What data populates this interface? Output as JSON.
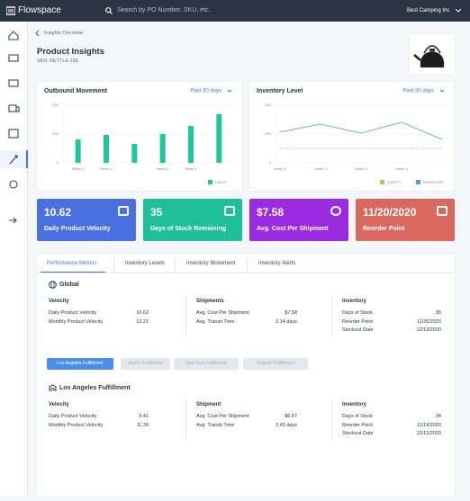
{
  "header": {
    "logo": "Flowspace",
    "search_placeholder": "Search by PO Number, SKU, etc.",
    "account": "Best Camping Inc"
  },
  "breadcrumb": "Insights Overview",
  "title": "Product Insights",
  "sku": "SKU: KETTLE-181",
  "chart_data": [
    {
      "type": "bar",
      "title": "Outbound Movement",
      "period": "Past 30 days",
      "categories": [
        "Week 1",
        "Week 2",
        null,
        "Week 3",
        "Week 4",
        null
      ],
      "series": [
        {
          "name": "UNITS",
          "color": "#1fc79a",
          "values": [
            81,
            97,
            66,
            100,
            128,
            169
          ]
        }
      ],
      "ylim": [
        0,
        200
      ],
      "yticks": [
        0,
        100,
        200
      ],
      "grid": true
    },
    {
      "type": "line",
      "title": "Inventory Level",
      "period": "Past 30 days",
      "categories": [
        "Week 1",
        "Week 2",
        "Week 3",
        "Week 4",
        null
      ],
      "series": [
        {
          "name": "SAFETY",
          "color": "#d9b36a",
          "dashed": true,
          "values": [
            125,
            125,
            125,
            125,
            125
          ]
        },
        {
          "name": "INVENTORY",
          "color": "#4a9be0",
          "values": [
            266,
            336,
            258,
            352,
            203
          ]
        }
      ],
      "ylim": [
        0,
        500
      ],
      "yticks": [
        0,
        250,
        500
      ],
      "grid": true
    }
  ],
  "kpis": [
    {
      "value": "10.62",
      "label": "Daily Product Velocity",
      "color": "#4a6fe0"
    },
    {
      "value": "35",
      "label": "Days of Stock Remaining",
      "color": "#1fbf9a"
    },
    {
      "value": "$7.58",
      "label": "Avg. Cost Per Shipment",
      "color": "#9b2be0"
    },
    {
      "value": "11/20/2020",
      "label": "Reorder Point",
      "color": "#d9695f"
    }
  ],
  "tabs": [
    "Performance Metrics",
    "Inventory Levels",
    "Inventory Movement",
    "Inventory Alerts"
  ],
  "global": {
    "title": "Global",
    "columns": [
      {
        "heading": "Velocity",
        "rows": [
          {
            "label": "Daily Product Velocity",
            "value": "10.62"
          },
          {
            "label": "Monthly Product Velocity",
            "value": "13.21"
          }
        ]
      },
      {
        "heading": "Shipments",
        "rows": [
          {
            "label": "Avg. Cost Per Shipment",
            "value": "$7.58"
          },
          {
            "label": "Avg. Transit Time",
            "value": "2.14 days"
          }
        ]
      },
      {
        "heading": "Inventory",
        "rows": [
          {
            "label": "Days of Stock",
            "value": "35"
          },
          {
            "label": "Reorder Point",
            "value": "11/20/2020"
          },
          {
            "label": "Stockout Date",
            "value": "12/13/2020"
          }
        ]
      }
    ]
  },
  "locations": [
    "Los Angeles Fulfillment",
    "Austin Fulfillment",
    "New York Fulfillment",
    "Orlando Fulfillment"
  ],
  "location": {
    "title": "Los Angeles Fulfillment",
    "columns": [
      {
        "heading": "Velocity",
        "rows": [
          {
            "label": "Daily Product Velocity",
            "value": "9.41"
          },
          {
            "label": "Monthly Product Velocity",
            "value": "11.39"
          }
        ]
      },
      {
        "heading": "Shipment",
        "rows": [
          {
            "label": "Avg. Cost Per Shipment",
            "value": "$6.67"
          },
          {
            "label": "Avg. Transit Time",
            "value": "2.43 days"
          }
        ]
      },
      {
        "heading": "Inventory",
        "rows": [
          {
            "label": "Days of Stock",
            "value": "34"
          },
          {
            "label": "Reorder Point",
            "value": "11/19/2020"
          },
          {
            "label": "Stockout Date",
            "value": "12/12/2020"
          }
        ]
      }
    ]
  }
}
